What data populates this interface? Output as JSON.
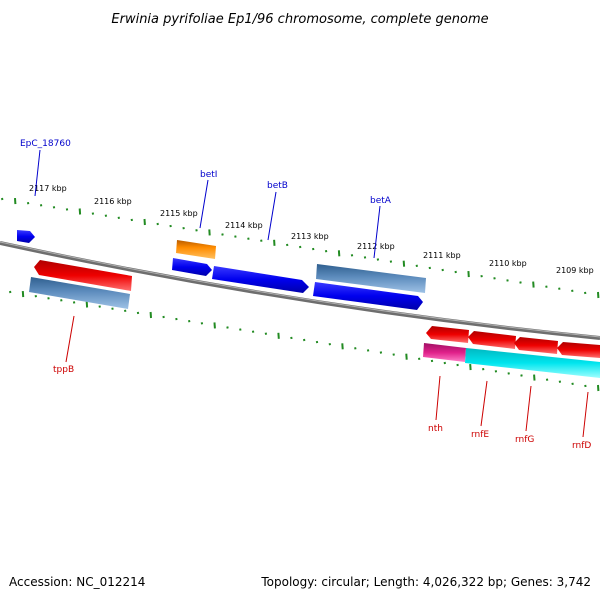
{
  "title": "Erwinia pyrifoliae Ep1/96 chromosome, complete genome",
  "footer": {
    "accession": "Accession: NC_012214",
    "topology": "Topology: circular; Length: 4,026,322 bp; Genes: 3,742"
  },
  "colors": {
    "backbone": "#808080",
    "tick": "#228b22",
    "forward_label": "#0000cc",
    "reverse_label": "#cc0000",
    "blue_gene": "#0000ee",
    "steelblue_gene": "#4f7fb0",
    "orange_gene": "#ff8c00",
    "red_gene": "#ee0000",
    "magenta_gene": "#e0208a",
    "cyan_gene": "#00e5ee"
  },
  "ticks": [
    "2117 kbp",
    "2116 kbp",
    "2115 kbp",
    "2114 kbp",
    "2113 kbp",
    "2112 kbp",
    "2111 kbp",
    "2110 kbp",
    "2109 kbp"
  ],
  "genes_forward": [
    {
      "label": "",
      "color": "blue_gene",
      "strand": "forward"
    },
    {
      "label": "EpC_18760",
      "color": "steelblue_gene",
      "strand": "forward"
    },
    {
      "label": "betI",
      "color": "orange_gene",
      "strand": "forward"
    },
    {
      "label": "",
      "color": "blue_gene",
      "strand": "forward"
    },
    {
      "label": "betB",
      "color": "blue_gene",
      "strand": "forward"
    },
    {
      "label": "betA",
      "color": "steelblue_gene",
      "strand": "forward"
    },
    {
      "label": "",
      "color": "blue_gene",
      "strand": "forward"
    }
  ],
  "genes_reverse": [
    {
      "label": "tppB",
      "color": "red_gene",
      "strand": "reverse"
    },
    {
      "label": "nth",
      "color": "red_gene",
      "strand": "reverse"
    },
    {
      "label": "rnfE",
      "color": "red_gene",
      "strand": "reverse"
    },
    {
      "label": "rnfG",
      "color": "red_gene",
      "strand": "reverse"
    },
    {
      "label": "rnfD",
      "color": "red_gene",
      "strand": "reverse"
    },
    {
      "label": "",
      "color": "magenta_gene",
      "strand": "reverse"
    },
    {
      "label": "",
      "color": "cyan_gene",
      "strand": "reverse"
    }
  ]
}
